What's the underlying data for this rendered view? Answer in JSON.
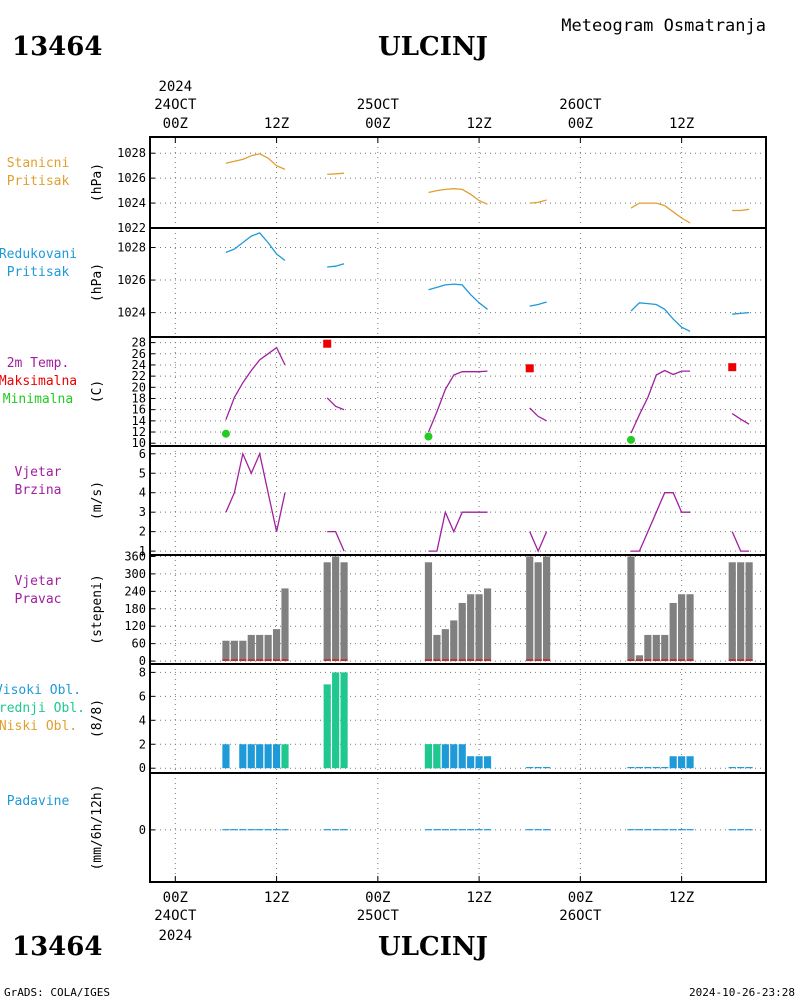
{
  "header": {
    "station_id": "13464",
    "station_name": "ULCINJ",
    "product": "Meteogram Osmatranja"
  },
  "footer": {
    "credit": "GrADS: COLA/IGES",
    "timestamp": "2024-10-26-23:28"
  },
  "colors": {
    "station_pressure": "#e0a030",
    "reduced_pressure": "#1e9ad8",
    "temperature": "#a020a0",
    "tmax": "#ee0000",
    "tmin": "#22cc22",
    "wind": "#a020a0",
    "wind_bar": "#808080",
    "wind_base": "#cc2020",
    "high_cloud": "#1e9ad8",
    "mid_cloud": "#20c890",
    "low_cloud": "#e0a030",
    "precip": "#1e9ad8"
  },
  "time_axis": {
    "year": "2024",
    "day_labels": [
      {
        "t": 0,
        "label": "24OCT"
      },
      {
        "t": 24,
        "label": "25OCT"
      },
      {
        "t": 48,
        "label": "26OCT"
      }
    ],
    "hour_ticks": [
      {
        "t": 0,
        "label": "00Z"
      },
      {
        "t": 12,
        "label": "12Z"
      },
      {
        "t": 24,
        "label": "00Z"
      },
      {
        "t": 36,
        "label": "12Z"
      },
      {
        "t": 48,
        "label": "00Z"
      },
      {
        "t": 60,
        "label": "12Z"
      }
    ],
    "range_hours": [
      -3,
      70
    ]
  },
  "chart_data": [
    {
      "type": "line",
      "panel": "stanicni",
      "labels": [
        "Stanicni",
        "Pritisak"
      ],
      "label_colors": [
        "station_pressure",
        "station_pressure"
      ],
      "ylabel": "(hPa)",
      "ylim": [
        1022,
        1029.3
      ],
      "yticks": [
        1022,
        1024,
        1026,
        1028
      ],
      "color": "station_pressure",
      "series": [
        {
          "x": [
            6,
            7,
            8,
            9,
            10,
            11,
            12,
            13
          ],
          "y": [
            1027.2,
            1027.35,
            1027.5,
            1027.8,
            1027.95,
            1027.6,
            1027.0,
            1026.7
          ]
        },
        {
          "x": [
            18,
            19,
            20
          ],
          "y": [
            1026.3,
            1026.35,
            1026.4
          ]
        },
        {
          "x": [
            30,
            31,
            32,
            33,
            34,
            35,
            36,
            37
          ],
          "y": [
            1024.85,
            1025.0,
            1025.1,
            1025.15,
            1025.1,
            1024.7,
            1024.2,
            1023.9
          ]
        },
        {
          "x": [
            42,
            43,
            44
          ],
          "y": [
            1024.0,
            1024.05,
            1024.25
          ]
        },
        {
          "x": [
            54,
            55,
            56,
            57,
            58,
            59,
            60,
            61
          ],
          "y": [
            1023.6,
            1024.0,
            1024.0,
            1024.0,
            1023.8,
            1023.3,
            1022.8,
            1022.4
          ]
        },
        {
          "x": [
            66,
            67,
            68
          ],
          "y": [
            1023.4,
            1023.4,
            1023.5
          ]
        }
      ]
    },
    {
      "type": "line",
      "panel": "redukovani",
      "labels": [
        "Redukovani",
        "Pritisak"
      ],
      "label_colors": [
        "reduced_pressure",
        "reduced_pressure"
      ],
      "ylabel": "(hPa)",
      "ylim": [
        1022.5,
        1029.2
      ],
      "yticks": [
        1024,
        1026,
        1028
      ],
      "color": "reduced_pressure",
      "series": [
        {
          "x": [
            6,
            7,
            8,
            9,
            10,
            11,
            12,
            13
          ],
          "y": [
            1027.7,
            1027.9,
            1028.3,
            1028.7,
            1028.9,
            1028.3,
            1027.6,
            1027.2
          ]
        },
        {
          "x": [
            18,
            19,
            20
          ],
          "y": [
            1026.8,
            1026.85,
            1027.0
          ]
        },
        {
          "x": [
            30,
            31,
            32,
            33,
            34,
            35,
            36,
            37
          ],
          "y": [
            1025.4,
            1025.55,
            1025.7,
            1025.75,
            1025.7,
            1025.1,
            1024.6,
            1024.2
          ]
        },
        {
          "x": [
            42,
            43,
            44
          ],
          "y": [
            1024.4,
            1024.5,
            1024.65
          ]
        },
        {
          "x": [
            54,
            55,
            56,
            57,
            58,
            59,
            60,
            61
          ],
          "y": [
            1024.1,
            1024.6,
            1024.55,
            1024.5,
            1024.2,
            1023.6,
            1023.1,
            1022.85
          ]
        },
        {
          "x": [
            66,
            67,
            68
          ],
          "y": [
            1023.9,
            1023.95,
            1024.0
          ]
        }
      ]
    },
    {
      "type": "line",
      "panel": "temperatura",
      "labels": [
        "2m Temp.",
        "Maksimalna",
        "Minimalna"
      ],
      "label_colors": [
        "temperature",
        "tmax",
        "tmin"
      ],
      "ylabel": "(C)",
      "ylim": [
        9.5,
        29
      ],
      "yticks": [
        10,
        12,
        14,
        16,
        18,
        20,
        22,
        24,
        26,
        28
      ],
      "color": "temperature",
      "series": [
        {
          "x": [
            6,
            7,
            8,
            9,
            10,
            11,
            12,
            13
          ],
          "y": [
            14.2,
            18.2,
            20.8,
            23.0,
            24.9,
            26.0,
            27.1,
            24.0
          ]
        },
        {
          "x": [
            18,
            19,
            20
          ],
          "y": [
            18.1,
            16.6,
            16.0
          ]
        },
        {
          "x": [
            30,
            31,
            32,
            33,
            34,
            35,
            36,
            37
          ],
          "y": [
            12.0,
            15.6,
            19.6,
            22.2,
            22.8,
            22.8,
            22.8,
            22.9
          ]
        },
        {
          "x": [
            42,
            43,
            44
          ],
          "y": [
            16.3,
            14.8,
            14.0
          ]
        },
        {
          "x": [
            54,
            55,
            56,
            57,
            58,
            59,
            60,
            61
          ],
          "y": [
            11.8,
            15.1,
            18.2,
            22.2,
            23.0,
            22.3,
            22.9,
            22.9
          ]
        },
        {
          "x": [
            66,
            67,
            68
          ],
          "y": [
            15.3,
            14.3,
            13.4
          ]
        }
      ],
      "tmax_points": [
        {
          "x": 18,
          "y": 27.8
        },
        {
          "x": 42,
          "y": 23.4
        },
        {
          "x": 66,
          "y": 23.6
        }
      ],
      "tmin_points": [
        {
          "x": 6,
          "y": 11.7
        },
        {
          "x": 30,
          "y": 11.2
        },
        {
          "x": 54,
          "y": 10.6
        }
      ]
    },
    {
      "type": "line",
      "panel": "vjetar_brzina",
      "labels": [
        "Vjetar",
        "Brzina"
      ],
      "label_colors": [
        "wind",
        "wind"
      ],
      "ylabel": "(m/s)",
      "ylim": [
        0.8,
        6.4
      ],
      "yticks": [
        1,
        2,
        3,
        4,
        5,
        6
      ],
      "color": "wind",
      "series": [
        {
          "x": [
            6,
            7,
            8,
            9,
            10,
            11,
            12,
            13
          ],
          "y": [
            3,
            4,
            6,
            5,
            6,
            4,
            2,
            4
          ]
        },
        {
          "x": [
            18,
            19,
            20
          ],
          "y": [
            2,
            2,
            1
          ]
        },
        {
          "x": [
            30,
            31,
            32,
            33,
            34,
            35,
            36,
            37
          ],
          "y": [
            1,
            1,
            3,
            2,
            3,
            3,
            3,
            3
          ]
        },
        {
          "x": [
            42,
            43,
            44
          ],
          "y": [
            2,
            1,
            2
          ]
        },
        {
          "x": [
            54,
            55,
            56,
            57,
            58,
            59,
            60,
            61
          ],
          "y": [
            1,
            1,
            2,
            3,
            4,
            4,
            3,
            3
          ]
        },
        {
          "x": [
            66,
            67,
            68
          ],
          "y": [
            2,
            1,
            1
          ]
        }
      ]
    },
    {
      "type": "bar",
      "panel": "vjetar_pravac",
      "labels": [
        "Vjetar",
        "Pravac"
      ],
      "label_colors": [
        "wind",
        "wind"
      ],
      "ylabel": "(stepeni)",
      "ylim": [
        -10,
        365
      ],
      "yticks": [
        0,
        60,
        120,
        180,
        240,
        300,
        360
      ],
      "color": "wind_bar",
      "base_color": "wind_base",
      "x": [
        6,
        7,
        8,
        9,
        10,
        11,
        12,
        13,
        18,
        19,
        20,
        30,
        31,
        32,
        33,
        34,
        35,
        36,
        37,
        42,
        43,
        44,
        54,
        55,
        56,
        57,
        58,
        59,
        60,
        61,
        66,
        67,
        68
      ],
      "values": [
        70,
        70,
        70,
        90,
        90,
        90,
        110,
        250,
        340,
        360,
        340,
        340,
        90,
        110,
        140,
        200,
        230,
        230,
        250,
        360,
        340,
        360,
        360,
        20,
        90,
        90,
        90,
        200,
        230,
        230,
        340,
        340,
        340
      ]
    },
    {
      "type": "bar",
      "panel": "oblaci",
      "labels": [
        "Visoki Obl.",
        "Srednji Obl.",
        "Niski Obl."
      ],
      "label_colors": [
        "high_cloud",
        "mid_cloud",
        "low_cloud"
      ],
      "ylabel": "(8/8)",
      "ylim": [
        -0.4,
        8.7
      ],
      "yticks": [
        0,
        2,
        4,
        6,
        8
      ],
      "series": [
        {
          "color": "high_cloud",
          "x": [
            6,
            8,
            9,
            10,
            11,
            12,
            30,
            31,
            32,
            33,
            34,
            35,
            36,
            37,
            42,
            43,
            44,
            54,
            55,
            56,
            57,
            58,
            59,
            60,
            61,
            66,
            67,
            68
          ],
          "values": [
            2,
            2,
            2,
            2,
            2,
            2,
            2,
            2,
            2,
            2,
            2,
            1,
            1,
            1,
            0.1,
            0.1,
            0.1,
            0.1,
            0.1,
            0.1,
            0.1,
            0.1,
            1,
            1,
            1,
            0.1,
            0.1,
            0.1
          ]
        },
        {
          "color": "mid_cloud",
          "x": [
            13,
            18,
            19,
            20,
            30,
            31
          ],
          "values": [
            2,
            7,
            8,
            8,
            2,
            2
          ]
        }
      ]
    },
    {
      "type": "bar",
      "panel": "padavine",
      "labels": [
        "Padavine"
      ],
      "label_colors": [
        "precip"
      ],
      "ylabel": "(mm/6h/12h)",
      "ylim": [
        -3.3,
        3.6
      ],
      "yticks": [
        0
      ],
      "color": "precip",
      "x": [
        6,
        7,
        8,
        9,
        10,
        11,
        12,
        13,
        18,
        19,
        20,
        30,
        31,
        32,
        33,
        34,
        35,
        36,
        37,
        42,
        43,
        44,
        54,
        55,
        56,
        57,
        58,
        59,
        60,
        61,
        66,
        67,
        68
      ],
      "values": [
        0.05,
        0.05,
        0.05,
        0.05,
        0.05,
        0.05,
        0.05,
        0.05,
        0.05,
        0.05,
        0.05,
        0.05,
        0.05,
        0.05,
        0.05,
        0.05,
        0.05,
        0.05,
        0.05,
        0.05,
        0.05,
        0.05,
        0.05,
        0.05,
        0.05,
        0.05,
        0.05,
        0.05,
        0.05,
        0.05,
        0.05,
        0.05,
        0.05
      ]
    }
  ]
}
